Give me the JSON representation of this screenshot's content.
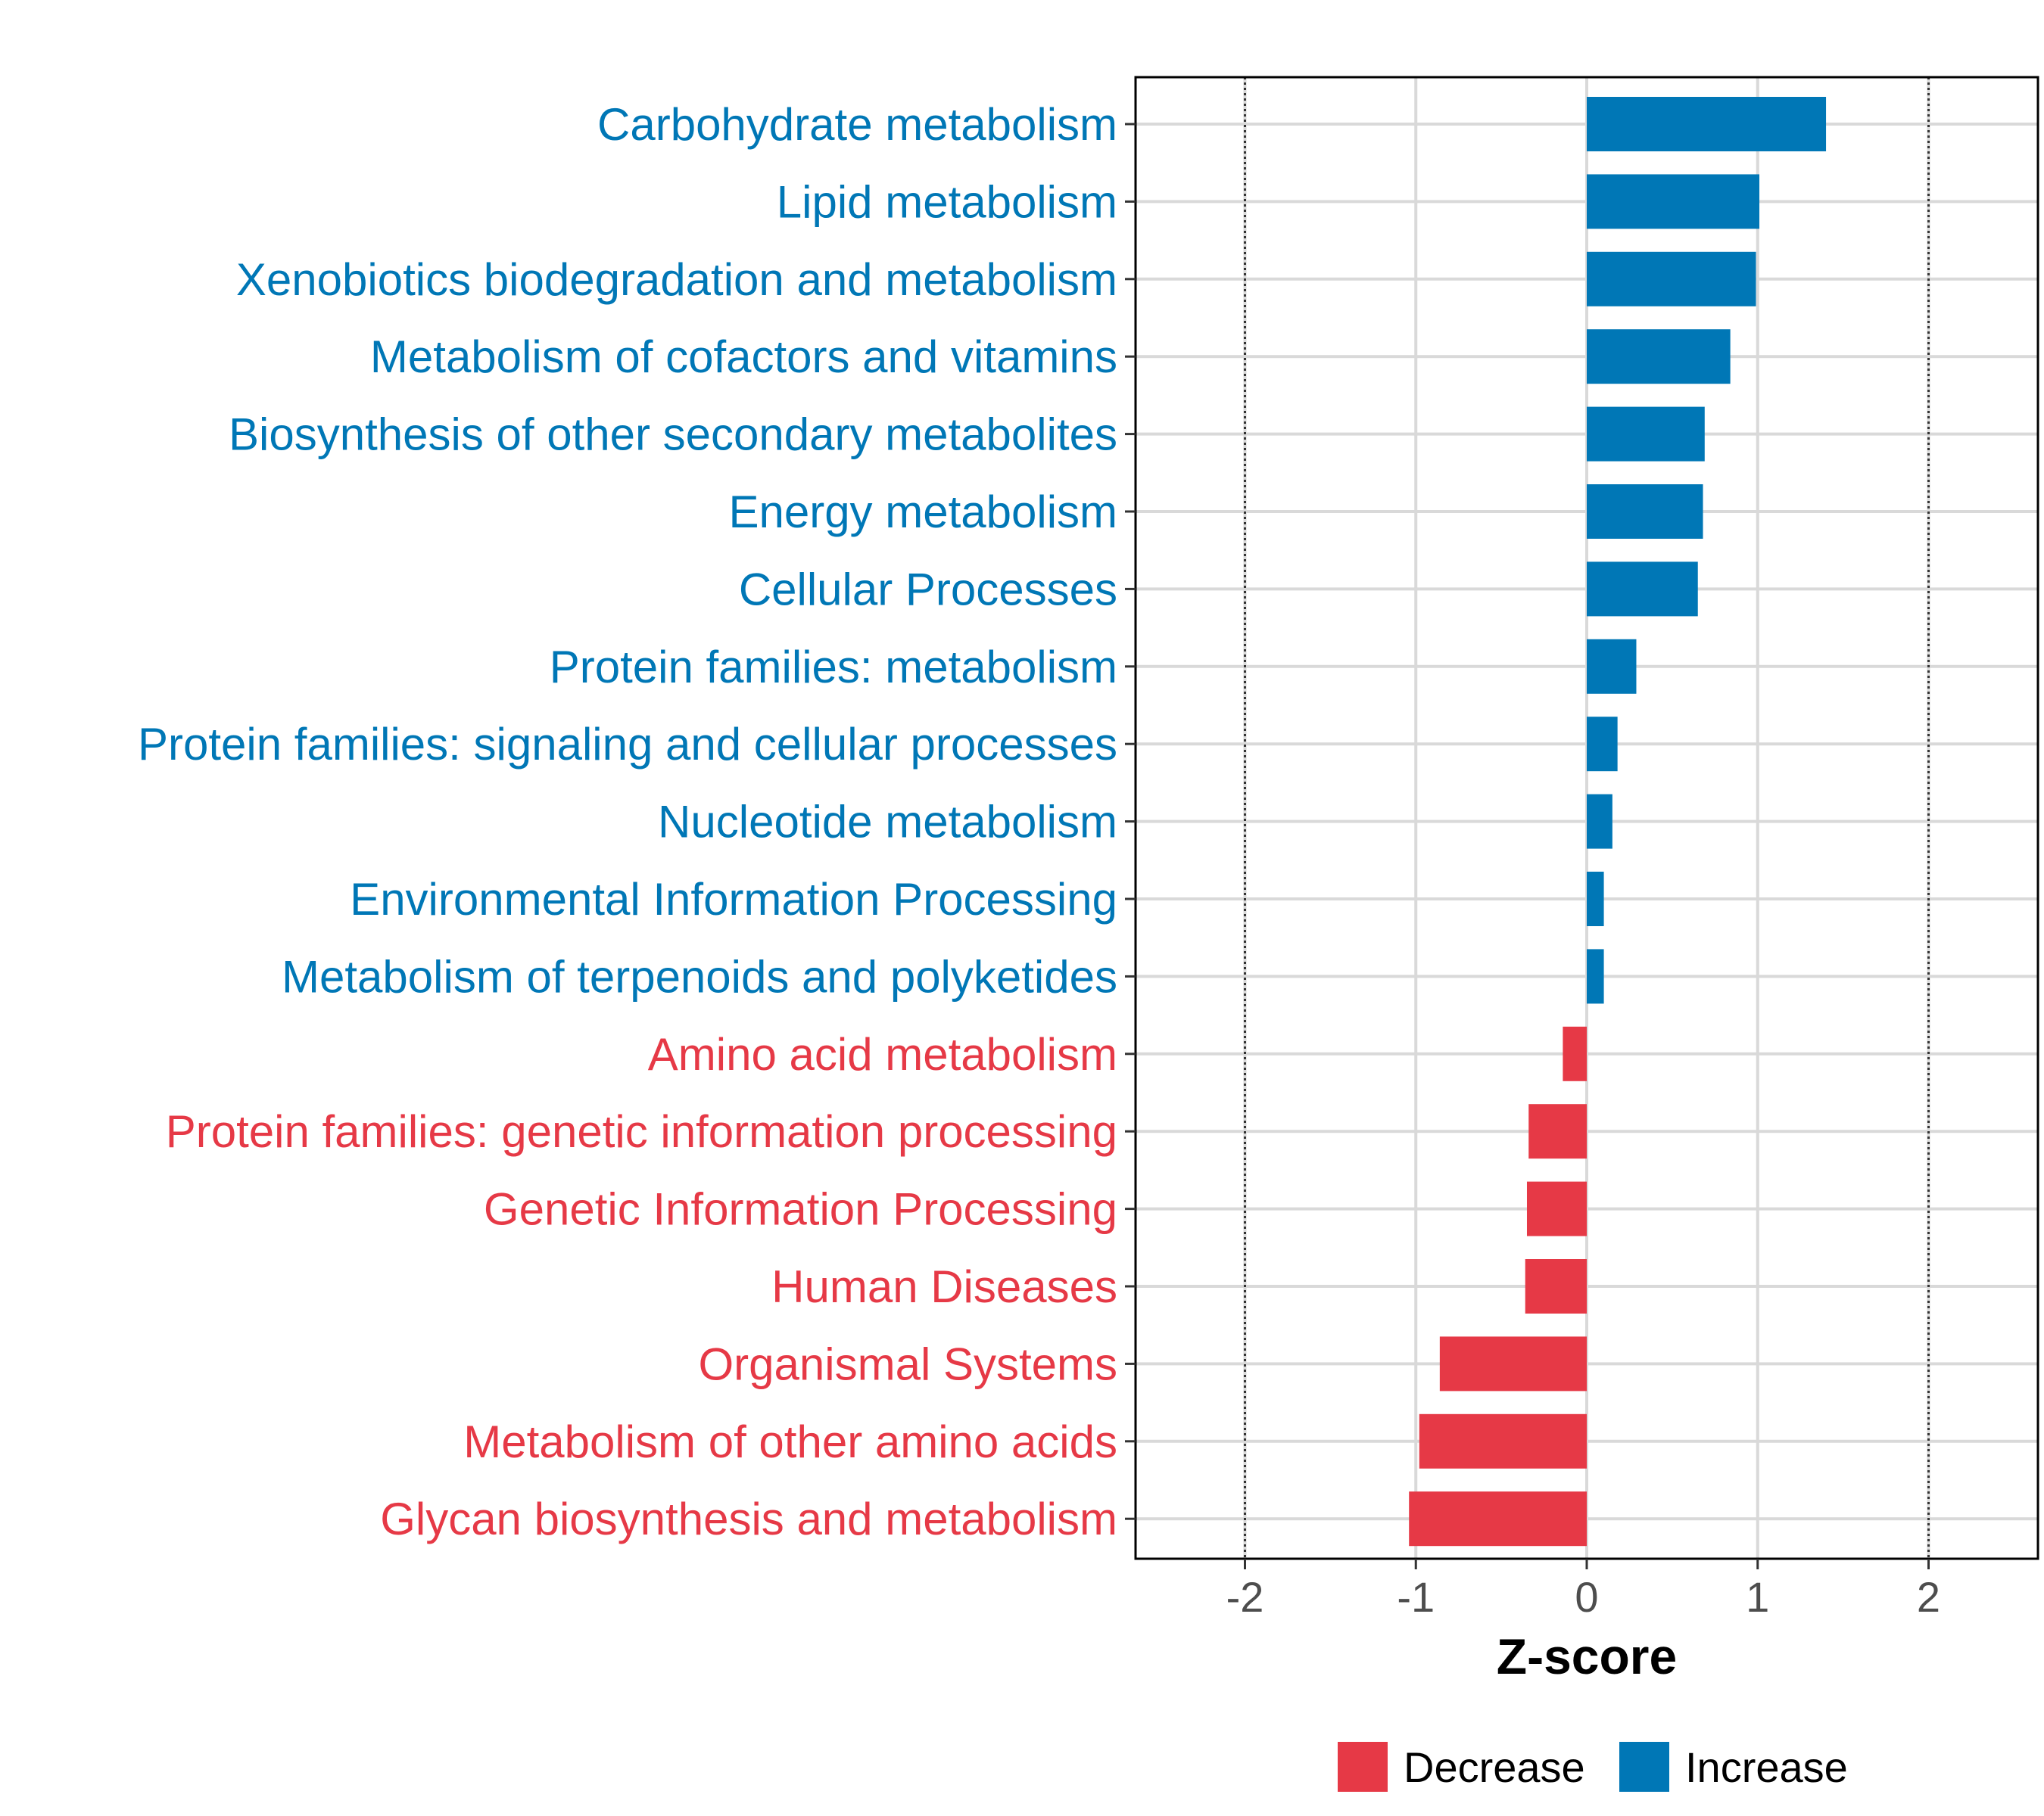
{
  "chart_data": {
    "type": "bar",
    "orientation": "horizontal",
    "title": "",
    "xlabel": "Z-score",
    "ylabel": "",
    "xlim": [
      -2.64,
      2.64
    ],
    "xticks": [
      -2,
      -1,
      0,
      1,
      2
    ],
    "xtick_labels": [
      "-2",
      "-1",
      "0",
      "1",
      "2"
    ],
    "reference_lines": [
      -2,
      2
    ],
    "grid": true,
    "legend_position": "bottom",
    "groups": [
      {
        "name": "Decrease",
        "color": "#E63946"
      },
      {
        "name": "Increase",
        "color": "#0077B6"
      }
    ],
    "categories": [
      "Carbohydrate metabolism",
      "Lipid metabolism",
      "Xenobiotics biodegradation and metabolism",
      "Metabolism of cofactors and vitamins",
      "Biosynthesis of other secondary metabolites",
      "Energy metabolism",
      "Cellular Processes",
      "Protein families: metabolism",
      "Protein families: signaling and cellular processes",
      "Nucleotide metabolism",
      "Environmental Information Processing",
      "Metabolism of terpenoids and polyketides",
      "Amino acid metabolism",
      "Protein families: genetic information processing",
      "Genetic Information Processing",
      "Human Diseases",
      "Organismal Systems",
      "Metabolism of other amino acids",
      "Glycan biosynthesis and metabolism"
    ],
    "values": [
      1.4,
      1.01,
      0.99,
      0.84,
      0.69,
      0.68,
      0.65,
      0.29,
      0.18,
      0.15,
      0.1,
      0.1,
      -0.14,
      -0.34,
      -0.35,
      -0.36,
      -0.86,
      -0.98,
      -1.04
    ],
    "group": [
      "Increase",
      "Increase",
      "Increase",
      "Increase",
      "Increase",
      "Increase",
      "Increase",
      "Increase",
      "Increase",
      "Increase",
      "Increase",
      "Increase",
      "Decrease",
      "Decrease",
      "Decrease",
      "Decrease",
      "Decrease",
      "Decrease",
      "Decrease"
    ]
  }
}
